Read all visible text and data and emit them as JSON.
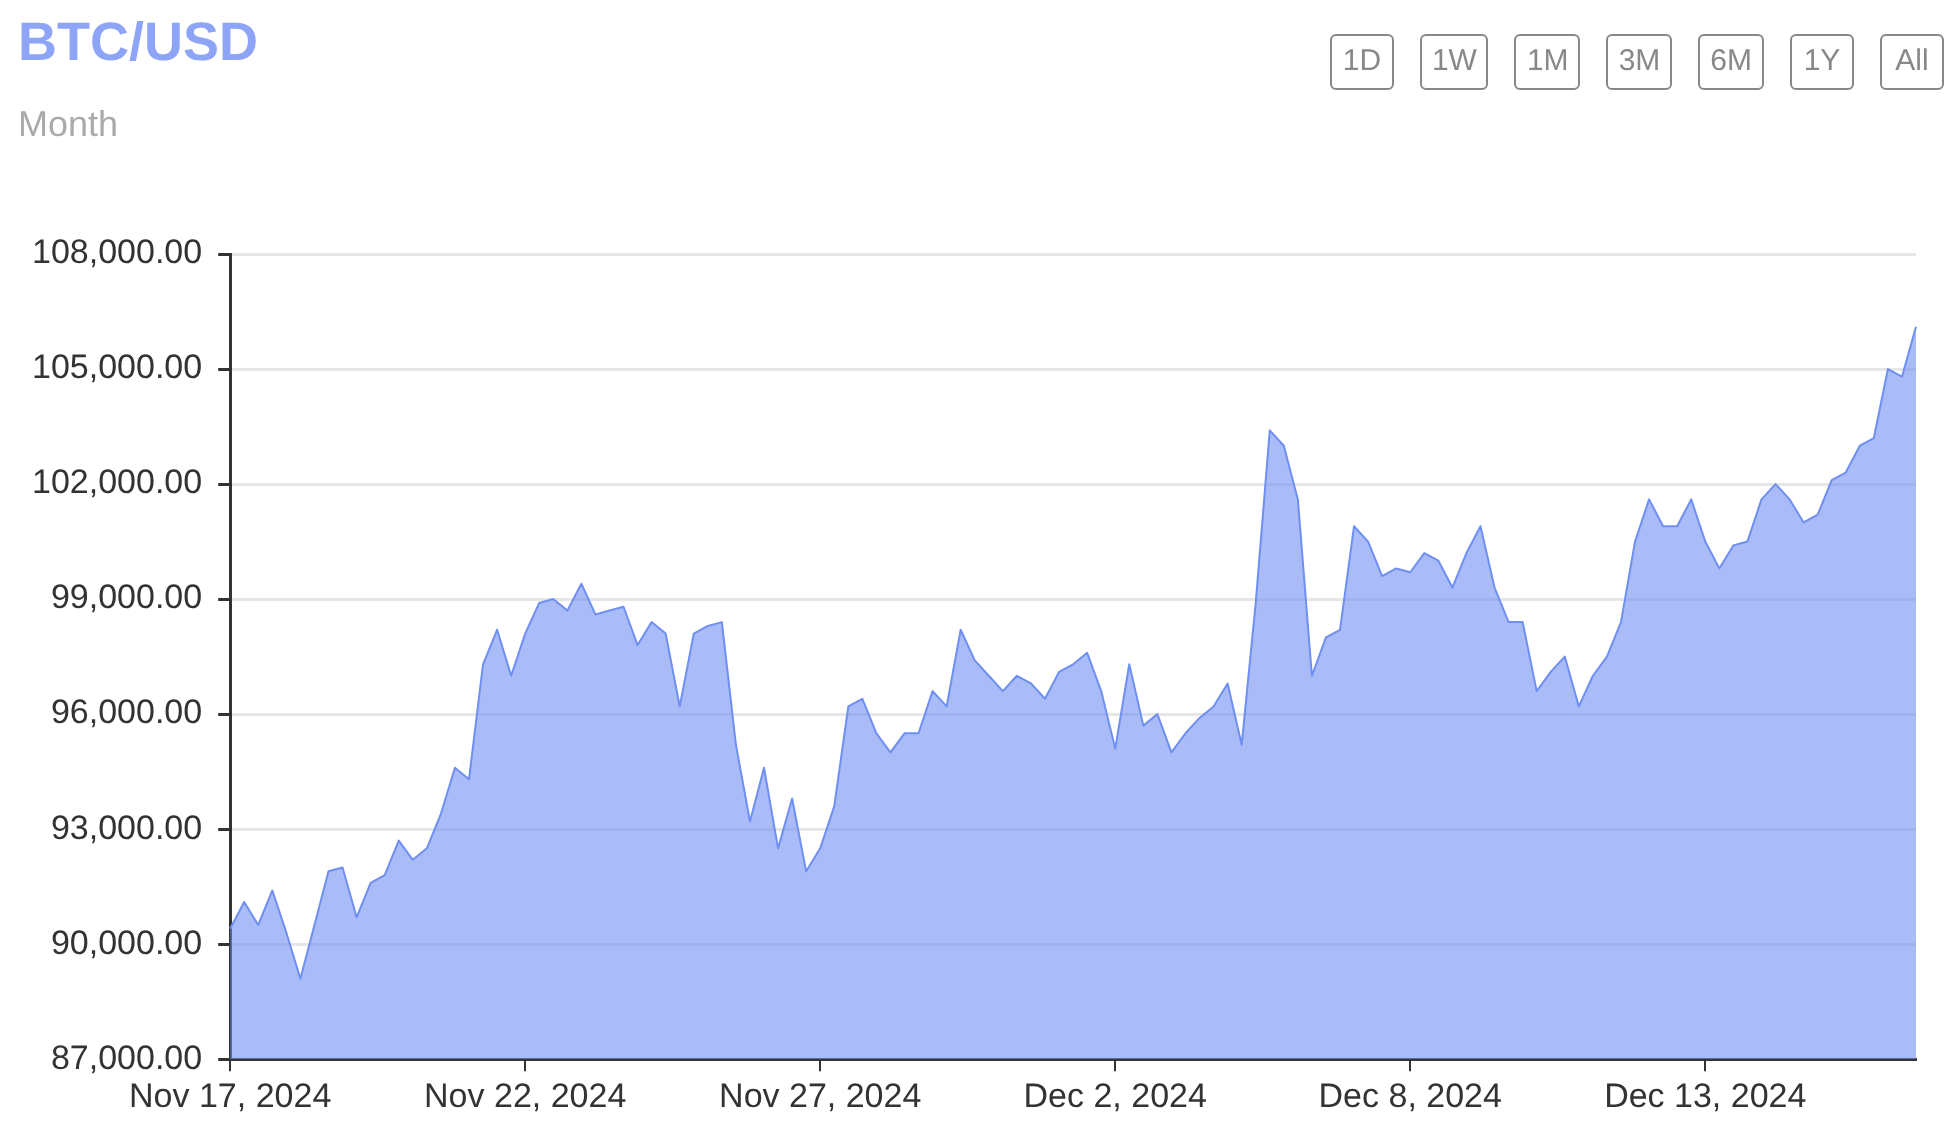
{
  "chart_data": {
    "type": "area",
    "title": "BTC/USD",
    "subtitle": "Month",
    "annotations": [
      "1D",
      "1W",
      "1M",
      "3M",
      "6M",
      "1Y",
      "All"
    ],
    "categories": [
      "Nov 17, 2024",
      null,
      null,
      null,
      null,
      null,
      null,
      null,
      null,
      null,
      null,
      null,
      null,
      null,
      null,
      null,
      null,
      null,
      null,
      null,
      null,
      "Nov 22, 2024",
      null,
      null,
      null,
      null,
      null,
      null,
      null,
      null,
      null,
      null,
      null,
      null,
      null,
      null,
      null,
      null,
      null,
      null,
      null,
      null,
      "Nov 27, 2024",
      null,
      null,
      null,
      null,
      null,
      null,
      null,
      null,
      null,
      null,
      null,
      null,
      null,
      null,
      null,
      null,
      null,
      null,
      null,
      null,
      "Dec 2, 2024",
      null,
      null,
      null,
      null,
      null,
      null,
      null,
      null,
      null,
      null,
      null,
      null,
      null,
      null,
      null,
      null,
      null,
      null,
      null,
      null,
      "Dec 8, 2024",
      null,
      null,
      null,
      null,
      null,
      null,
      null,
      null,
      null,
      null,
      null,
      null,
      null,
      null,
      null,
      null,
      null,
      null,
      null,
      null,
      "Dec 13, 2024",
      null,
      null,
      null,
      null,
      null,
      null,
      null,
      null,
      null,
      null,
      null,
      null,
      null,
      null,
      null
    ],
    "series": [
      {
        "color": "#6f8ff2",
        "values": [
          90400,
          91100,
          90500,
          91400,
          90300,
          89100,
          90500,
          91900,
          92000,
          90700,
          91600,
          91800,
          92700,
          92200,
          92500,
          93400,
          94600,
          94300,
          97300,
          98200,
          97000,
          98100,
          98900,
          99000,
          98700,
          99400,
          98600,
          98700,
          98800,
          97800,
          98400,
          98100,
          96200,
          98100,
          98300,
          98400,
          95200,
          93200,
          94600,
          92500,
          93800,
          91900,
          92500,
          93600,
          96200,
          96400,
          95500,
          95000,
          95500,
          95500,
          96600,
          96200,
          98200,
          97400,
          97000,
          96600,
          97000,
          96800,
          96400,
          97100,
          97300,
          97600,
          96600,
          95100,
          97300,
          95700,
          96000,
          95000,
          95500,
          95900,
          96200,
          96800,
          95200,
          98900,
          103400,
          103000,
          101600,
          97000,
          98000,
          98200,
          100900,
          100500,
          99600,
          99800,
          99700,
          100200,
          100000,
          99300,
          100200,
          100900,
          99300,
          98400,
          98400,
          96600,
          97100,
          97500,
          96200,
          97000,
          97500,
          98400,
          100500,
          101600,
          100900,
          100900,
          101600,
          100500,
          99800,
          100400,
          100500,
          101600,
          102000,
          101600,
          101000,
          101200,
          102100,
          102300,
          103000,
          103200,
          105000,
          104800,
          106100
        ]
      }
    ],
    "ylim": [
      87000,
      108000
    ],
    "yticks": [
      {
        "value": 87000,
        "label": "87,000.00"
      },
      {
        "value": 90000,
        "label": "90,000.00"
      },
      {
        "value": 93000,
        "label": "93,000.00"
      },
      {
        "value": 96000,
        "label": "96,000.00"
      },
      {
        "value": 99000,
        "label": "99,000.00"
      },
      {
        "value": 102000,
        "label": "102,000.00"
      },
      {
        "value": 105000,
        "label": "105,000.00"
      },
      {
        "value": 108000,
        "label": "108,000.00"
      }
    ],
    "grid": "y",
    "line_style": "solid",
    "legend": false
  }
}
